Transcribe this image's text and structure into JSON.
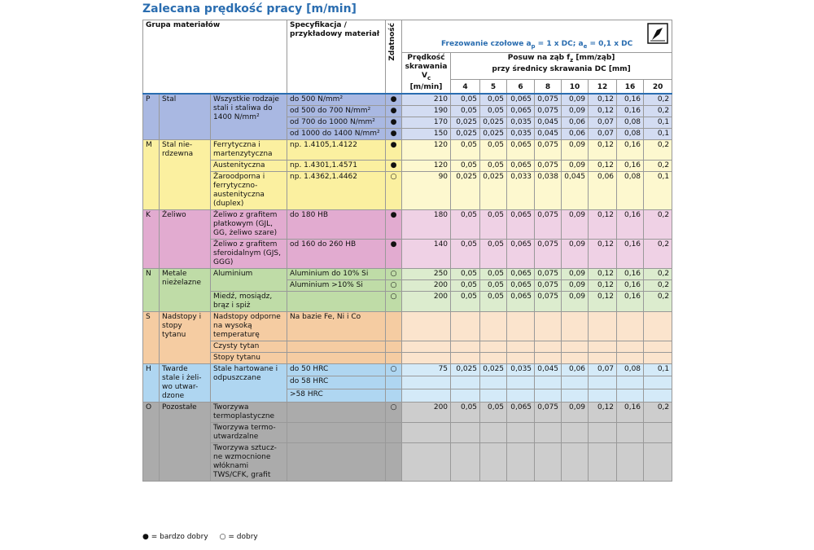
{
  "title": "Zalecana prędkość pracy [m/min]",
  "header": {
    "group": "Grupa materiałów",
    "spec": "Specyfikacja / przykładowy materiał",
    "suitability": "Zdatność",
    "milling": [
      "Frezowanie czołowe a",
      "p",
      " = 1 x DC; a",
      "e",
      " = 0,1 x DC"
    ],
    "vc": [
      "Prędkość skrawania V",
      "c",
      "[m/min]"
    ],
    "feed": [
      "Posuw na ząb f",
      "z",
      " [mm/ząb]"
    ],
    "feed_line2": "przy średnicy skrawania DC [mm]",
    "diameters": [
      "4",
      "5",
      "6",
      "8",
      "10",
      "12",
      "16",
      "20"
    ]
  },
  "table": {
    "groups": [
      {
        "code": "P",
        "name": "Stal",
        "dark": "#a9b8e2",
        "light": "#d3dcf2",
        "materials": [
          {
            "name": "Wszystkie rodzaje stali i staliwa do 1400 N/mm²",
            "rows": [
              {
                "spec": "do 500 N/mm²",
                "suit": "●",
                "vc": "210",
                "feeds": [
                  "0,05",
                  "0,05",
                  "0,065",
                  "0,075",
                  "0,09",
                  "0,12",
                  "0,16",
                  "0,2"
                ]
              },
              {
                "spec": "od 500 do 700 N/mm²",
                "suit": "●",
                "vc": "190",
                "feeds": [
                  "0,05",
                  "0,05",
                  "0,065",
                  "0,075",
                  "0,09",
                  "0,12",
                  "0,16",
                  "0,2"
                ]
              },
              {
                "spec": "od 700 do 1000 N/mm²",
                "suit": "●",
                "vc": "170",
                "feeds": [
                  "0,025",
                  "0,025",
                  "0,035",
                  "0,045",
                  "0,06",
                  "0,07",
                  "0,08",
                  "0,1"
                ]
              },
              {
                "spec": "od 1000 do 1400 N/mm²",
                "suit": "●",
                "vc": "150",
                "feeds": [
                  "0,025",
                  "0,025",
                  "0,035",
                  "0,045",
                  "0,06",
                  "0,07",
                  "0,08",
                  "0,1"
                ]
              }
            ]
          }
        ]
      },
      {
        "code": "M",
        "name": "Stal nie-rdzewna",
        "dark": "#fbf0a0",
        "light": "#fdf8cf",
        "materials": [
          {
            "name": "Ferrytyczna i martenzytyczna",
            "rows": [
              {
                "spec": "np. 1.4105,1.4122",
                "suit": "●",
                "vc": "120",
                "feeds": [
                  "0,05",
                  "0,05",
                  "0,065",
                  "0,075",
                  "0,09",
                  "0,12",
                  "0,16",
                  "0,2"
                ]
              }
            ]
          },
          {
            "name": "Austenityczna",
            "rows": [
              {
                "spec": "np. 1.4301,1.4571",
                "suit": "●",
                "vc": "120",
                "feeds": [
                  "0,05",
                  "0,05",
                  "0,065",
                  "0,075",
                  "0,09",
                  "0,12",
                  "0,16",
                  "0,2"
                ]
              }
            ]
          },
          {
            "name": "Żaroodporna i ferrytyczno-austenityczna (duplex)",
            "rows": [
              {
                "spec": "np. 1.4362,1.4462",
                "suit": "○",
                "vc": "90",
                "feeds": [
                  "0,025",
                  "0,025",
                  "0,033",
                  "0,038",
                  "0,045",
                  "0,06",
                  "0,08",
                  "0,1"
                ]
              }
            ]
          }
        ]
      },
      {
        "code": "K",
        "name": "Żeliwo",
        "dark": "#e2abd0",
        "light": "#efd1e5",
        "materials": [
          {
            "name": "Żeliwo z grafitem płatkowym (GJL, GG, żeliwo szare)",
            "rows": [
              {
                "spec": "do 180 HB",
                "suit": "●",
                "vc": "180",
                "feeds": [
                  "0,05",
                  "0,05",
                  "0,065",
                  "0,075",
                  "0,09",
                  "0,12",
                  "0,16",
                  "0,2"
                ]
              }
            ]
          },
          {
            "name": "Żeliwo z grafitem sferoidalnym (GJS, GGG)",
            "rows": [
              {
                "spec": "od 160 do 260 HB",
                "suit": "●",
                "vc": "140",
                "feeds": [
                  "0,05",
                  "0,05",
                  "0,065",
                  "0,075",
                  "0,09",
                  "0,12",
                  "0,16",
                  "0,2"
                ]
              }
            ]
          }
        ]
      },
      {
        "code": "N",
        "name": "Metale nieżelazne",
        "dark": "#bfdca7",
        "light": "#dcecce",
        "materials": [
          {
            "name": "Aluminium",
            "rows": [
              {
                "spec": "Aluminium do 10% Si",
                "suit": "○",
                "vc": "250",
                "feeds": [
                  "0,05",
                  "0,05",
                  "0,065",
                  "0,075",
                  "0,09",
                  "0,12",
                  "0,16",
                  "0,2"
                ]
              },
              {
                "spec": "Aluminium >10% Si",
                "suit": "○",
                "vc": "200",
                "feeds": [
                  "0,05",
                  "0,05",
                  "0,065",
                  "0,075",
                  "0,09",
                  "0,12",
                  "0,16",
                  "0,2"
                ]
              }
            ]
          },
          {
            "name": "Miedź, mosiądz, brąz i spiż",
            "rows": [
              {
                "spec": null,
                "suit": "○",
                "vc": "200",
                "feeds": [
                  "0,05",
                  "0,05",
                  "0,065",
                  "0,075",
                  "0,09",
                  "0,12",
                  "0,16",
                  "0,2"
                ]
              }
            ]
          }
        ]
      },
      {
        "code": "S",
        "name": "Nadstopy i stopy tytanu",
        "dark": "#f5cca2",
        "light": "#fbe4cd",
        "materials": [
          {
            "name": "Nadstopy odporne na wysoką temperaturę",
            "rows": [
              {
                "spec": "Na bazie Fe, Ni i Co"
              }
            ]
          },
          {
            "name": "Czysty tytan",
            "rows": [
              {
                "spec": null
              }
            ]
          },
          {
            "name": "Stopy tytanu",
            "rows": [
              {
                "spec": null
              }
            ]
          }
        ]
      },
      {
        "code": "H",
        "name": "Twarde stale i żeli-wo utwar-dzone",
        "dark": "#afd6f1",
        "light": "#d4eaf8",
        "materials": [
          {
            "name": "Stale hartowane i odpuszczane",
            "rows": [
              {
                "spec": "do 50 HRC",
                "suit": "○",
                "vc": "75",
                "feeds": [
                  "0,025",
                  "0,025",
                  "0,035",
                  "0,045",
                  "0,06",
                  "0,07",
                  "0,08",
                  "0,1"
                ]
              },
              {
                "spec": "do 58 HRC"
              },
              {
                "spec": ">58 HRC"
              }
            ]
          }
        ]
      },
      {
        "code": "O",
        "name": "Pozostałe",
        "dark": "#ababab",
        "light": "#cdcdcd",
        "materials": [
          {
            "name": "Tworzywa termoplastyczne",
            "rows": [
              {
                "spec": null,
                "suit": "○",
                "vc": "200",
                "feeds": [
                  "0,05",
                  "0,05",
                  "0,065",
                  "0,075",
                  "0,09",
                  "0,12",
                  "0,16",
                  "0,2"
                ]
              }
            ]
          },
          {
            "name": "Tworzywa termo-utwardzalne",
            "rows": [
              {
                "spec": null
              }
            ]
          },
          {
            "name": "Tworzywa sztucz-ne wzmocnione włóknami TWS/CFK, grafit",
            "rows": [
              {
                "spec": null
              }
            ]
          }
        ]
      }
    ]
  },
  "legend": [
    "● = bardzo dobry",
    "○ = dobry"
  ]
}
